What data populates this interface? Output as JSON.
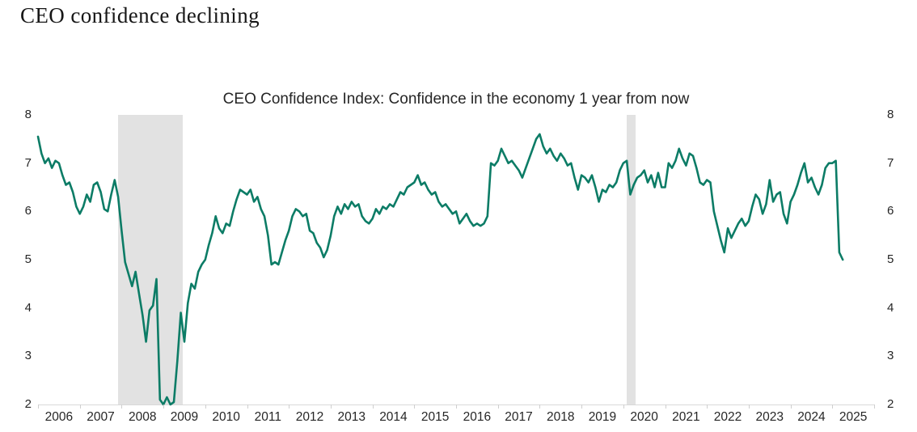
{
  "main_title": "CEO confidence declining",
  "colors": {
    "line": "#0c7c66",
    "recession_band": "#e2e2e2",
    "axis": "#d9d9d9",
    "text": "#262626"
  },
  "y_axis": {
    "labels": [
      "8",
      "7",
      "6",
      "5",
      "4",
      "3",
      "2"
    ],
    "min": 2,
    "max": 8,
    "shown_on_both_sides": true
  },
  "x_axis": {
    "labels": [
      "2006",
      "2007",
      "2008",
      "2009",
      "2010",
      "2011",
      "2012",
      "2013",
      "2014",
      "2015",
      "2016",
      "2017",
      "2018",
      "2019",
      "2020",
      "2021",
      "2022",
      "2023",
      "2024",
      "2025"
    ]
  },
  "chart_data": {
    "type": "line",
    "title": "CEO Confidence Index: Confidence in the economy 1 year from now",
    "xlabel": "",
    "ylabel": "",
    "ylim": [
      2,
      8
    ],
    "grid": false,
    "legend": "none",
    "x_start": "2006-01",
    "frequency": "monthly",
    "x_axis_total_months": 240,
    "series": [
      {
        "name": "CEO Confidence Index",
        "color": "#0c7c66",
        "values": [
          7.55,
          7.2,
          7.0,
          7.1,
          6.9,
          7.05,
          7.0,
          6.75,
          6.55,
          6.6,
          6.4,
          6.1,
          5.95,
          6.1,
          6.35,
          6.2,
          6.55,
          6.6,
          6.4,
          6.05,
          6.0,
          6.35,
          6.65,
          6.3,
          5.6,
          4.95,
          4.7,
          4.45,
          4.75,
          4.3,
          3.85,
          3.3,
          3.95,
          4.05,
          4.6,
          2.1,
          2.0,
          2.15,
          2.0,
          2.05,
          2.9,
          3.9,
          3.3,
          4.1,
          4.5,
          4.4,
          4.75,
          4.9,
          5.0,
          5.3,
          5.55,
          5.9,
          5.65,
          5.55,
          5.75,
          5.7,
          6.0,
          6.25,
          6.45,
          6.4,
          6.35,
          6.45,
          6.2,
          6.3,
          6.05,
          5.9,
          5.5,
          4.9,
          4.95,
          4.9,
          5.15,
          5.4,
          5.6,
          5.9,
          6.05,
          6.0,
          5.9,
          5.95,
          5.6,
          5.55,
          5.35,
          5.25,
          5.05,
          5.2,
          5.5,
          5.9,
          6.1,
          5.95,
          6.15,
          6.05,
          6.2,
          6.1,
          6.15,
          5.9,
          5.8,
          5.75,
          5.85,
          6.05,
          5.95,
          6.1,
          6.05,
          6.15,
          6.1,
          6.25,
          6.4,
          6.35,
          6.5,
          6.55,
          6.6,
          6.75,
          6.55,
          6.6,
          6.45,
          6.35,
          6.4,
          6.2,
          6.1,
          6.15,
          6.05,
          5.95,
          6.0,
          5.75,
          5.85,
          5.95,
          5.8,
          5.7,
          5.75,
          5.7,
          5.75,
          5.9,
          7.0,
          6.95,
          7.05,
          7.3,
          7.15,
          7.0,
          7.05,
          6.95,
          6.85,
          6.7,
          6.9,
          7.1,
          7.3,
          7.5,
          7.6,
          7.35,
          7.2,
          7.3,
          7.15,
          7.05,
          7.2,
          7.1,
          6.95,
          7.0,
          6.7,
          6.45,
          6.75,
          6.7,
          6.6,
          6.75,
          6.5,
          6.2,
          6.45,
          6.4,
          6.55,
          6.5,
          6.6,
          6.85,
          7.0,
          7.05,
          6.35,
          6.55,
          6.7,
          6.75,
          6.85,
          6.6,
          6.75,
          6.5,
          6.8,
          6.5,
          6.5,
          7.0,
          6.9,
          7.05,
          7.3,
          7.1,
          6.95,
          7.2,
          7.15,
          6.9,
          6.6,
          6.55,
          6.65,
          6.6,
          6.0,
          5.7,
          5.4,
          5.15,
          5.65,
          5.45,
          5.6,
          5.75,
          5.85,
          5.7,
          5.8,
          6.1,
          6.35,
          6.25,
          5.95,
          6.15,
          6.65,
          6.2,
          6.35,
          6.4,
          5.95,
          5.75,
          6.2,
          6.35,
          6.55,
          6.8,
          7.0,
          6.6,
          6.7,
          6.5,
          6.35,
          6.55,
          6.9,
          7.0,
          7.0,
          7.05,
          5.15,
          5.0
        ]
      }
    ],
    "recession_bands": [
      {
        "label": "2008-09 recession",
        "from": "2007-12",
        "to": "2009-06",
        "from_month_index": 23,
        "to_month_index": 41.5
      },
      {
        "label": "2020 recession",
        "from": "2020-02",
        "to": "2020-04",
        "from_month_index": 169,
        "to_month_index": 171.5
      }
    ]
  }
}
